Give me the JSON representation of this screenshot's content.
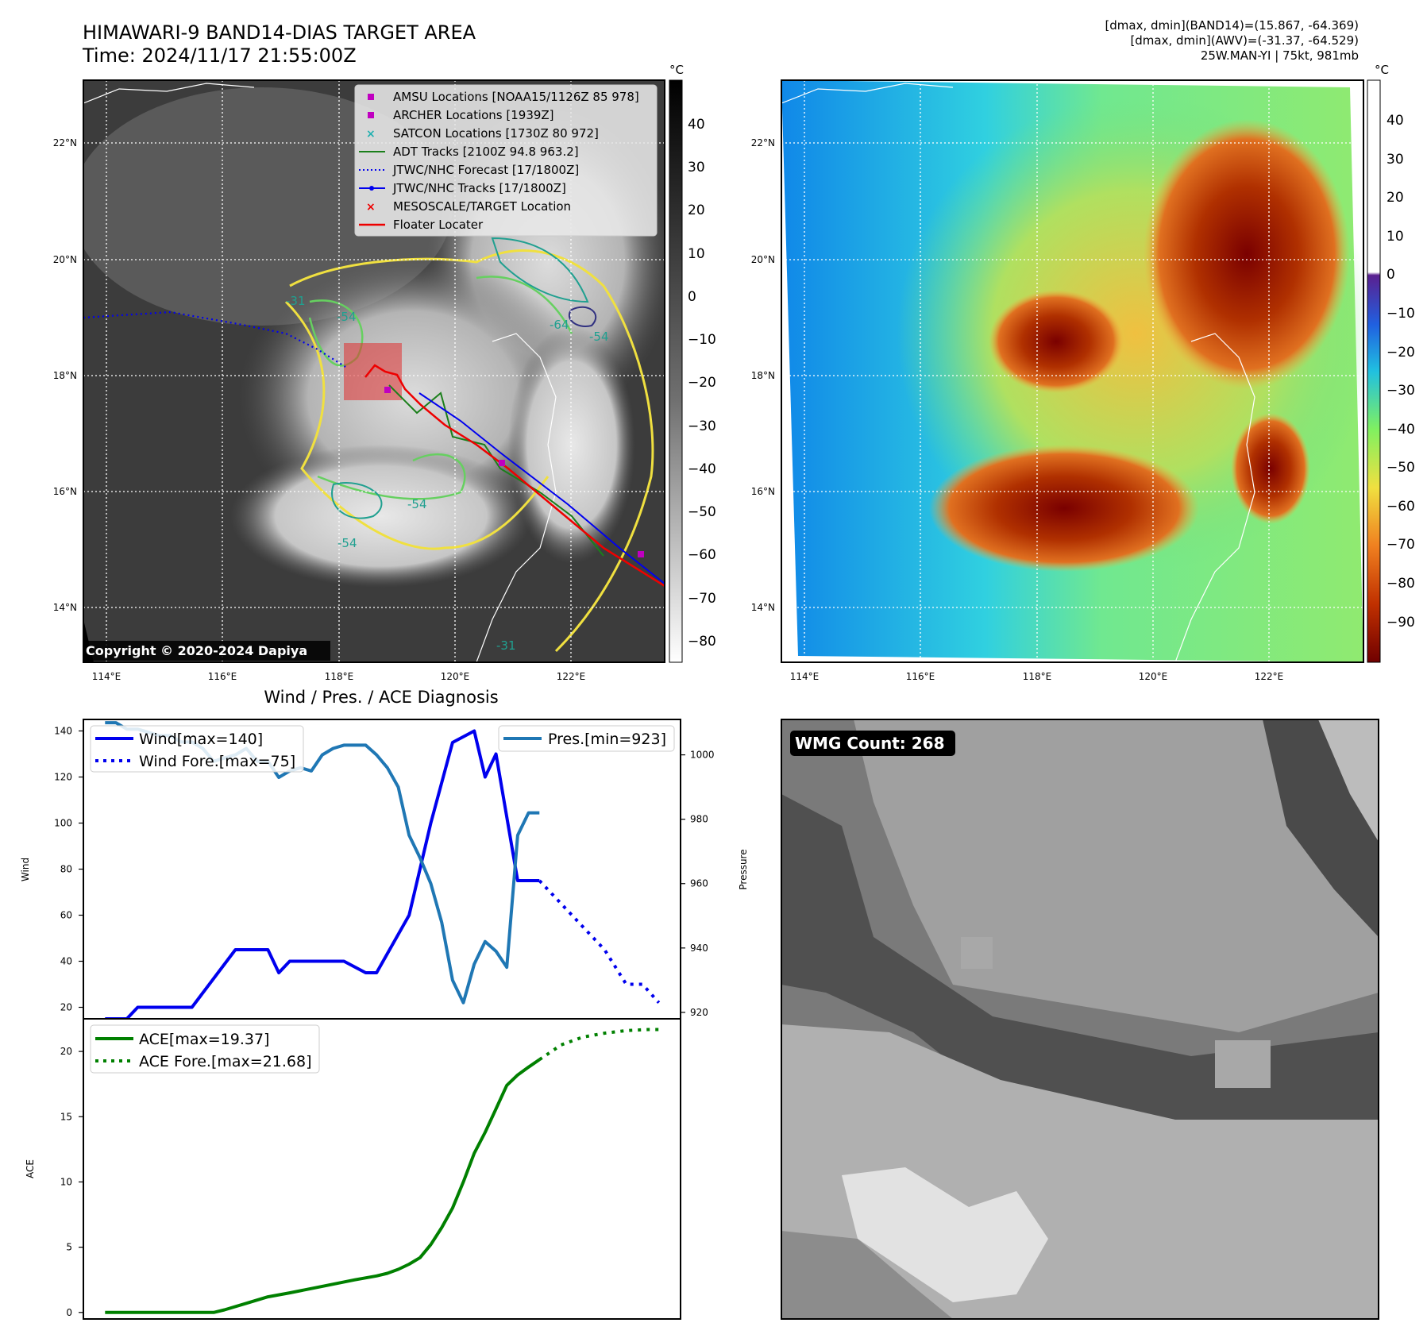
{
  "header": {
    "title_line1": "HIMAWARI-9 BAND14-DIAS TARGET AREA",
    "title_line2": "Time: 2024/11/17 21:55:00Z",
    "info_line1": "[dmax, dmin](BAND14)=(15.867, -64.369)",
    "info_line2": "[dmax, dmin](AWV)=(-31.37, -64.529)",
    "info_line3": "25W.MAN-YI | 75kt, 981mb"
  },
  "map1": {
    "copyright": "Copyright © 2020-2024 Dapiya",
    "colorbar_unit": "°C",
    "colorbar_ticks": [
      "40",
      "30",
      "20",
      "10",
      "0",
      "−10",
      "−20",
      "−30",
      "−40",
      "−50",
      "−60",
      "−70",
      "−80"
    ],
    "lat_labels": [
      "22°N",
      "20°N",
      "18°N",
      "16°N",
      "14°N"
    ],
    "lon_labels": [
      "114°E",
      "116°E",
      "118°E",
      "120°E",
      "122°E"
    ],
    "contour_labels": [
      "-54",
      "-64",
      "-54",
      "-54",
      "-31",
      "-54",
      "-31"
    ],
    "legend": [
      {
        "label": "AMSU Locations [NOAA15/1126Z 85 978]",
        "color": "#c000c0",
        "marker": "square"
      },
      {
        "label": "ARCHER Locations [1939Z]",
        "color": "#c000c0",
        "marker": "square"
      },
      {
        "label": "SATCON Locations [1730Z 80 972]",
        "color": "#20b0b0",
        "marker": "x"
      },
      {
        "label": "ADT Tracks [2100Z 94.8 963.2]",
        "color": "#1a7f1a",
        "marker": "line"
      },
      {
        "label": "JTWC/NHC Forecast [17/1800Z]",
        "color": "#0000ee",
        "marker": "dotted"
      },
      {
        "label": "JTWC/NHC Tracks [17/1800Z]",
        "color": "#0000ee",
        "marker": "dotline"
      },
      {
        "label": "MESOSCALE/TARGET Location",
        "color": "#ee0000",
        "marker": "x"
      },
      {
        "label": "Floater Locater",
        "color": "#ee0000",
        "marker": "line"
      }
    ]
  },
  "map2": {
    "colorbar_unit": "°C",
    "colorbar_ticks": [
      "40",
      "30",
      "20",
      "10",
      "0",
      "−10",
      "−20",
      "−30",
      "−40",
      "−50",
      "−60",
      "−70",
      "−80",
      "−90"
    ],
    "lat_labels": [
      "22°N",
      "20°N",
      "18°N",
      "16°N",
      "14°N"
    ],
    "lon_labels": [
      "114°E",
      "116°E",
      "118°E",
      "120°E",
      "122°E"
    ]
  },
  "wmg": {
    "label": "WMG Count: 268"
  },
  "chart_data": [
    {
      "type": "line",
      "title": "Wind / Pres. / ACE Diagnosis",
      "ylabel": "Wind",
      "ylabel_right": "Pressure",
      "ylim": [
        15,
        145
      ],
      "ylim_right": [
        918,
        1011
      ],
      "y_ticks": [
        20,
        40,
        60,
        80,
        100,
        120,
        140
      ],
      "y_ticks_right": [
        920,
        940,
        960,
        980,
        1000
      ],
      "series": [
        {
          "name": "Wind[max=140]",
          "color": "#0000ee",
          "style": "solid",
          "axis": "left",
          "x": [
            0,
            2,
            3,
            6,
            8,
            12,
            15,
            16,
            17,
            18,
            20,
            22,
            24,
            25,
            28,
            30,
            32,
            34,
            35,
            36,
            38,
            40
          ],
          "values": [
            15,
            15,
            20,
            20,
            20,
            45,
            45,
            35,
            40,
            40,
            40,
            40,
            35,
            35,
            60,
            100,
            135,
            140,
            120,
            130,
            75,
            75
          ]
        },
        {
          "name": "Wind Fore.[max=75]",
          "color": "#0000ee",
          "style": "dotted",
          "axis": "left",
          "x": [
            40,
            44,
            46,
            48,
            49.5,
            51
          ],
          "values": [
            75,
            55,
            45,
            30,
            30,
            22
          ]
        },
        {
          "name": "Pres.[min=923]",
          "color": "#1f77b4",
          "style": "solid",
          "axis": "right",
          "x": [
            0,
            1,
            2,
            3,
            4,
            5,
            6,
            7,
            8,
            9,
            10,
            11,
            12,
            13,
            14,
            15,
            16,
            17,
            18,
            19,
            20,
            21,
            22,
            23,
            24,
            25,
            26,
            27,
            28,
            29,
            30,
            31,
            32,
            33,
            34,
            35,
            36,
            37,
            38,
            39,
            40
          ],
          "values": [
            1010,
            1010,
            1008,
            1008,
            1007,
            1006,
            1006,
            1004,
            1004,
            1002,
            998,
            999,
            1000,
            1002,
            998,
            998,
            993,
            995,
            996,
            995,
            1000,
            1002,
            1003,
            1003,
            1003,
            1000,
            996,
            990,
            975,
            968,
            960,
            948,
            930,
            923,
            935,
            942,
            939,
            934,
            975,
            982,
            982
          ]
        }
      ]
    },
    {
      "type": "line",
      "ylabel": "ACE",
      "ylim": [
        -0.5,
        22.5
      ],
      "y_ticks": [
        0,
        5,
        10,
        15,
        20
      ],
      "series": [
        {
          "name": "ACE[max=19.37]",
          "color": "#008000",
          "style": "solid",
          "x": [
            0,
            10,
            11,
            13,
            15,
            17,
            20,
            23,
            25,
            26,
            27,
            28,
            29,
            30,
            31,
            32,
            33,
            34,
            35,
            36,
            37,
            38,
            39,
            40
          ],
          "values": [
            0,
            0,
            0.2,
            0.7,
            1.2,
            1.5,
            2.0,
            2.5,
            2.8,
            3.0,
            3.3,
            3.7,
            4.2,
            5.2,
            6.5,
            8.0,
            10.0,
            12.2,
            13.8,
            15.6,
            17.4,
            18.2,
            18.8,
            19.37
          ]
        },
        {
          "name": "ACE Fore.[max=21.68]",
          "color": "#008000",
          "style": "dotted",
          "x": [
            40,
            42,
            44,
            46,
            48,
            50,
            51
          ],
          "values": [
            19.37,
            20.5,
            21.1,
            21.4,
            21.6,
            21.68,
            21.68
          ]
        }
      ]
    }
  ]
}
